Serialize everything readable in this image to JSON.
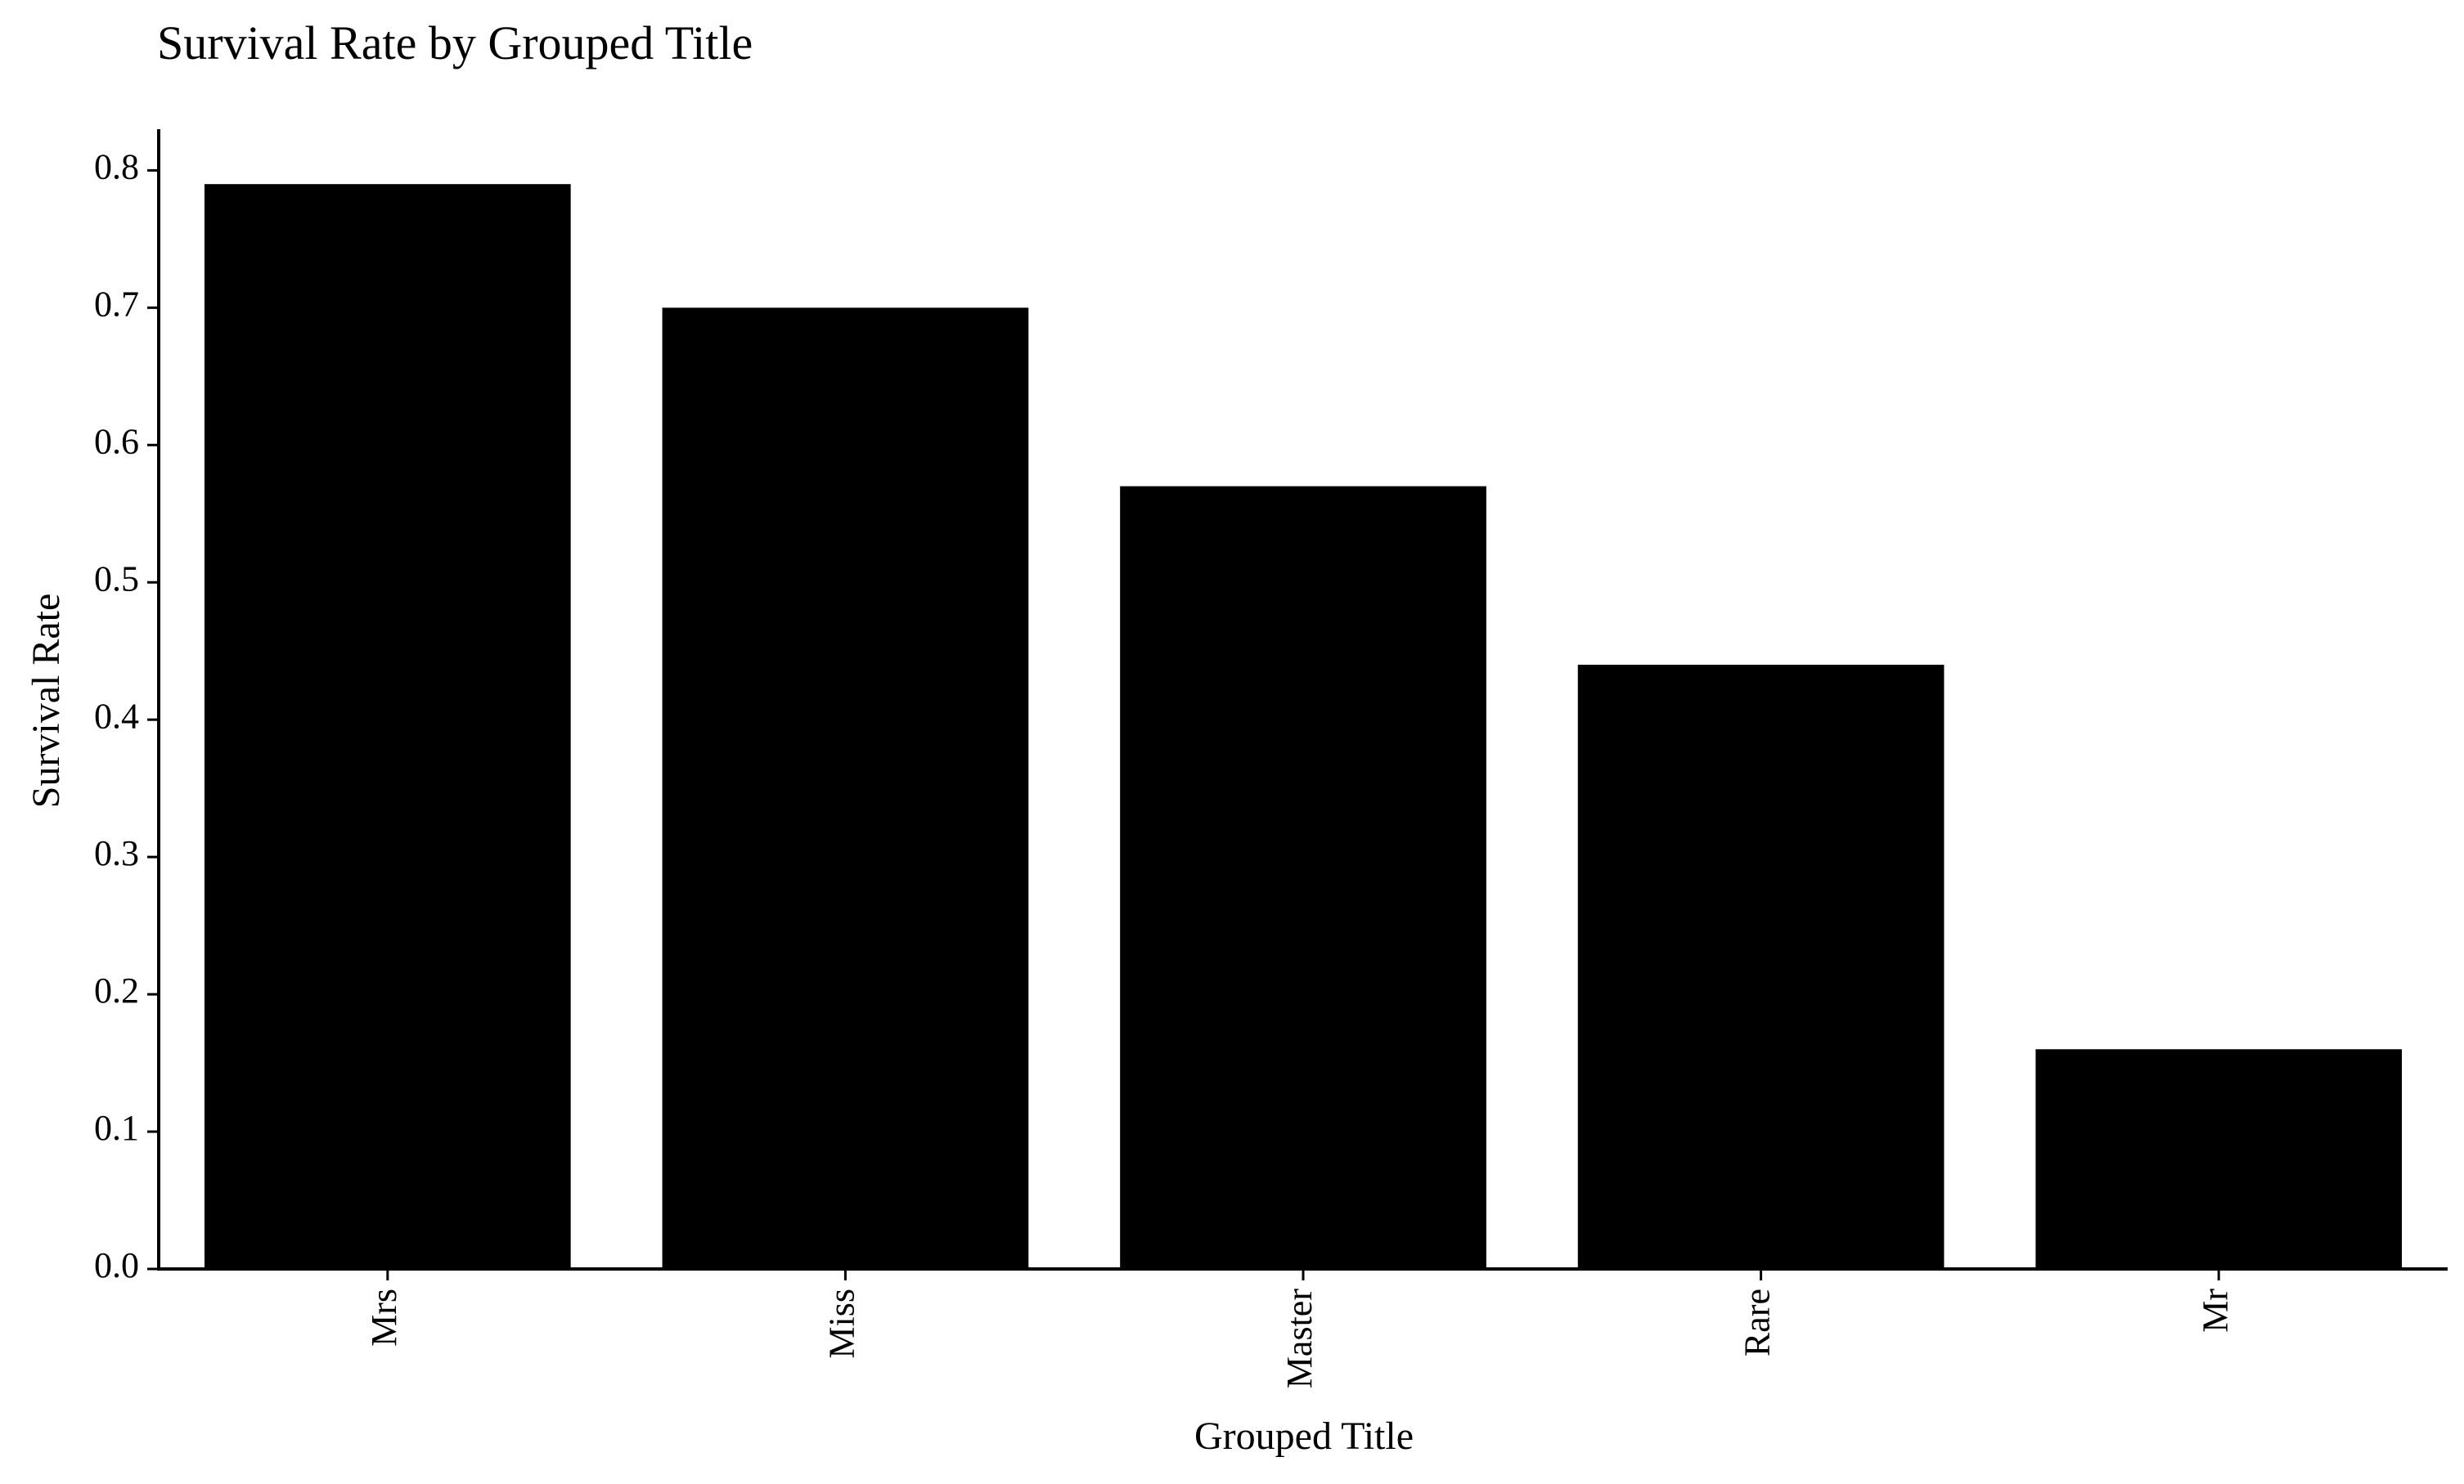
{
  "chart_data": {
    "type": "bar",
    "title": "Survival Rate by Grouped Title",
    "xlabel": "Grouped Title",
    "ylabel": "Survival Rate",
    "categories": [
      "Mrs",
      "Miss",
      "Master",
      "Rare",
      "Mr"
    ],
    "values": [
      0.79,
      0.7,
      0.57,
      0.44,
      0.16
    ],
    "ylim": [
      0,
      0.83
    ],
    "yticks": [
      "0.0",
      "0.1",
      "0.2",
      "0.3",
      "0.4",
      "0.5",
      "0.6",
      "0.7",
      "0.8"
    ],
    "grid": false,
    "legend": "none",
    "bar_color": "#000000",
    "axis_color": "#000000",
    "background": "#ffffff"
  }
}
